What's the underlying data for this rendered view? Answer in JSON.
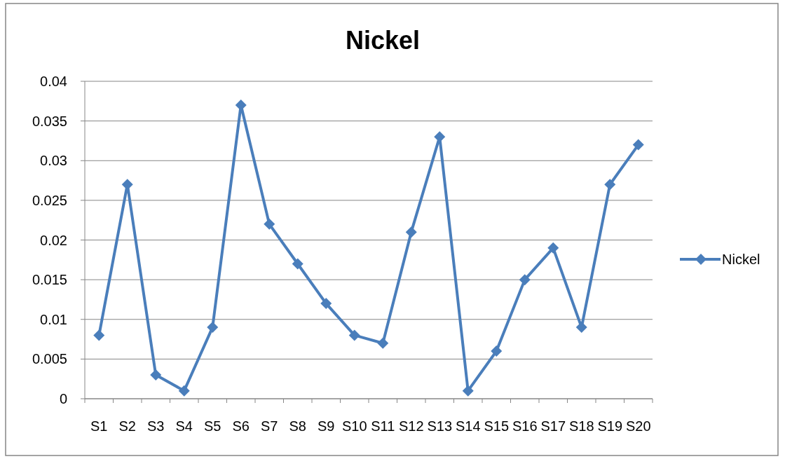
{
  "chart_data": {
    "type": "line",
    "title": "Nickel",
    "categories": [
      "S1",
      "S2",
      "S3",
      "S4",
      "S5",
      "S6",
      "S7",
      "S8",
      "S9",
      "S10",
      "S11",
      "S12",
      "S13",
      "S14",
      "S15",
      "S16",
      "S17",
      "S18",
      "S19",
      "S20"
    ],
    "series": [
      {
        "name": "Nickel",
        "color": "#4a7ebb",
        "values": [
          0.008,
          0.027,
          0.003,
          0.001,
          0.009,
          0.037,
          0.022,
          0.017,
          0.012,
          0.008,
          0.007,
          0.021,
          0.033,
          0.001,
          0.006,
          0.015,
          0.019,
          0.009,
          0.027,
          0.032
        ]
      }
    ],
    "ylim": [
      0,
      0.04
    ],
    "yticks": [
      0,
      0.005,
      0.01,
      0.015,
      0.02,
      0.025,
      0.03,
      0.035,
      0.04
    ],
    "grid": "y",
    "legend": "right",
    "marker": "diamond",
    "line_style": "solid"
  }
}
